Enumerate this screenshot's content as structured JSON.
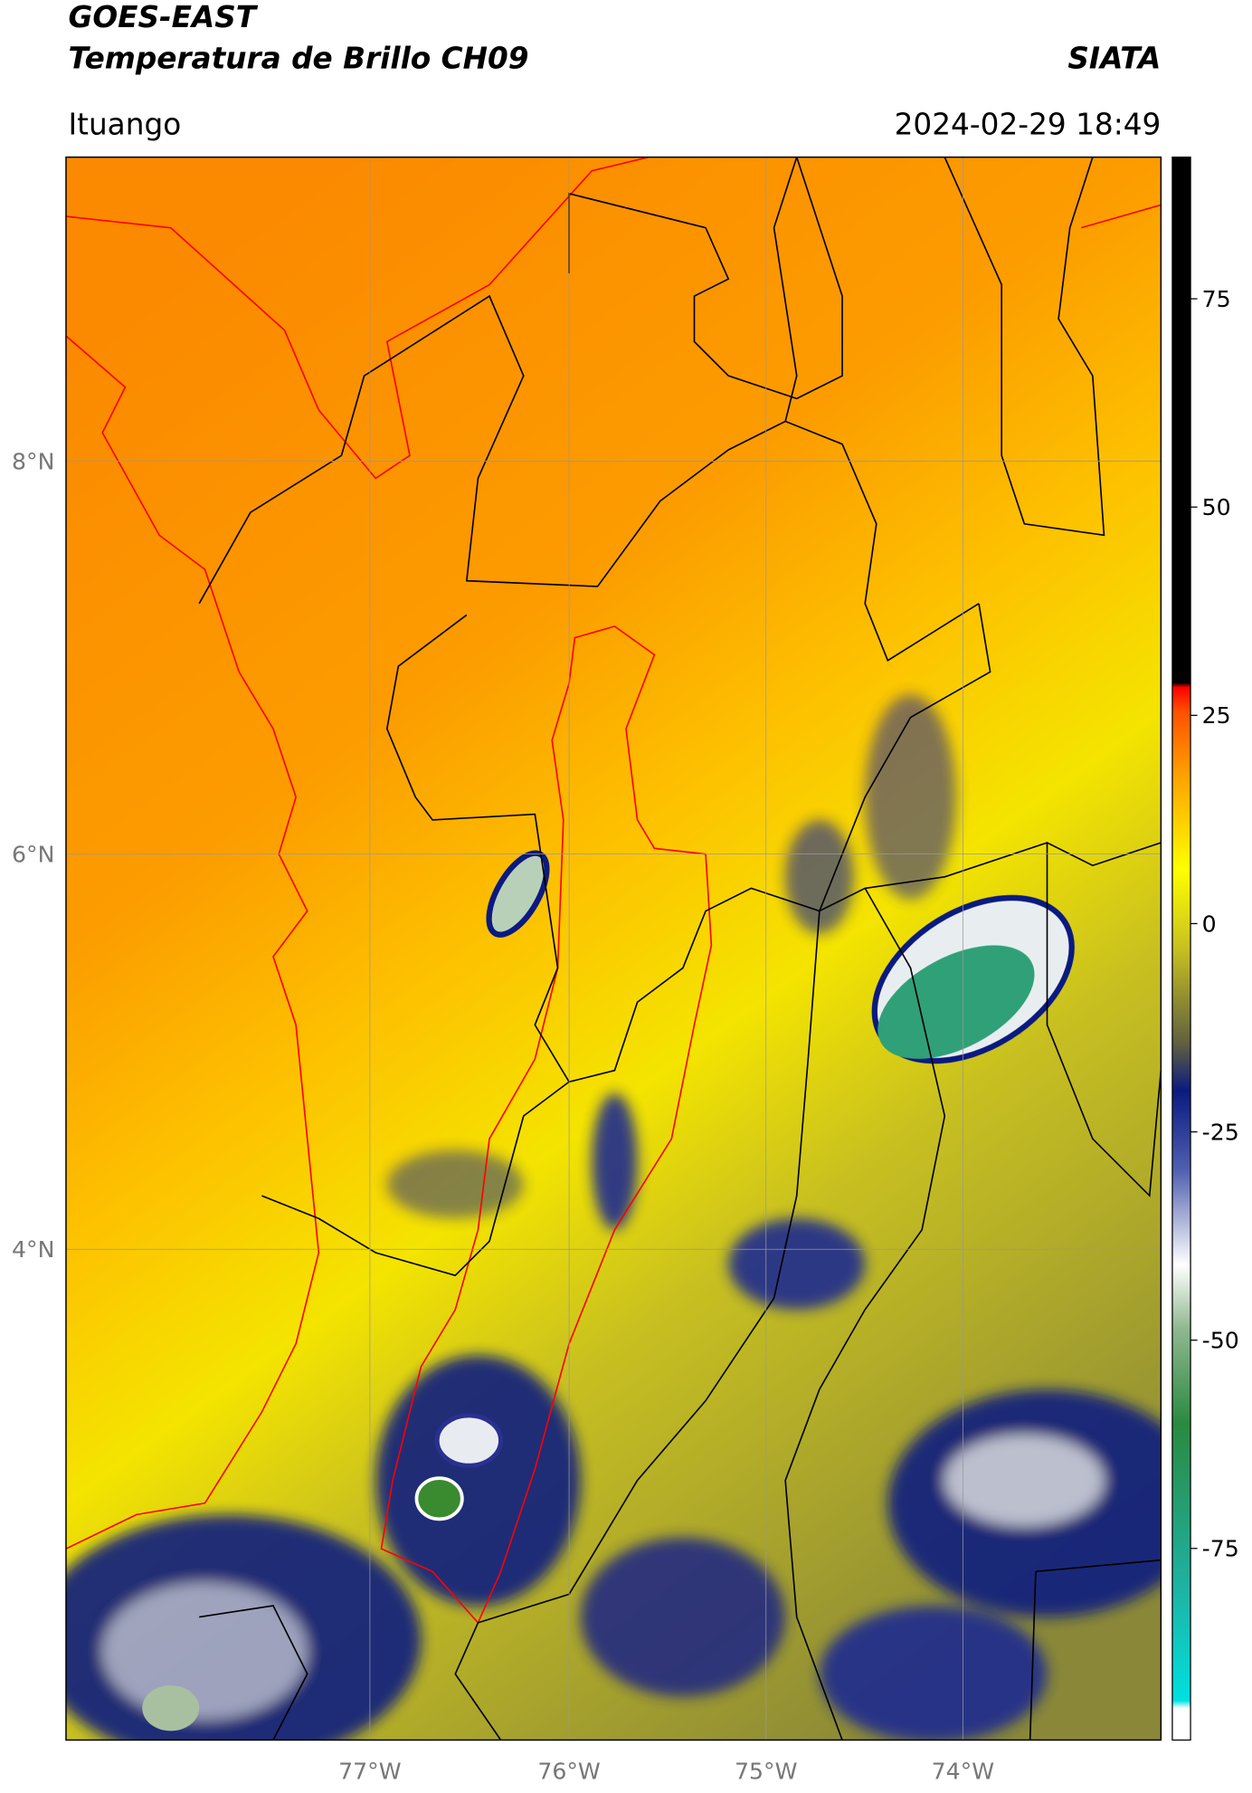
{
  "header": {
    "title_line1": "GOES-EAST",
    "title_line2": "Temperatura de Brillo CH09",
    "source": "SIATA",
    "location": "Ituango",
    "datetime": "2024-02-29 18:49"
  },
  "map": {
    "lat_labels": [
      "8°N",
      "6°N",
      "4°N"
    ],
    "lon_labels": [
      "77°W",
      "76°W",
      "75°W",
      "74°W"
    ]
  },
  "colorbar": {
    "ylim": [
      -98,
      92
    ],
    "ticks": [
      75,
      50,
      25,
      0,
      -25,
      -50,
      -75
    ]
  }
}
